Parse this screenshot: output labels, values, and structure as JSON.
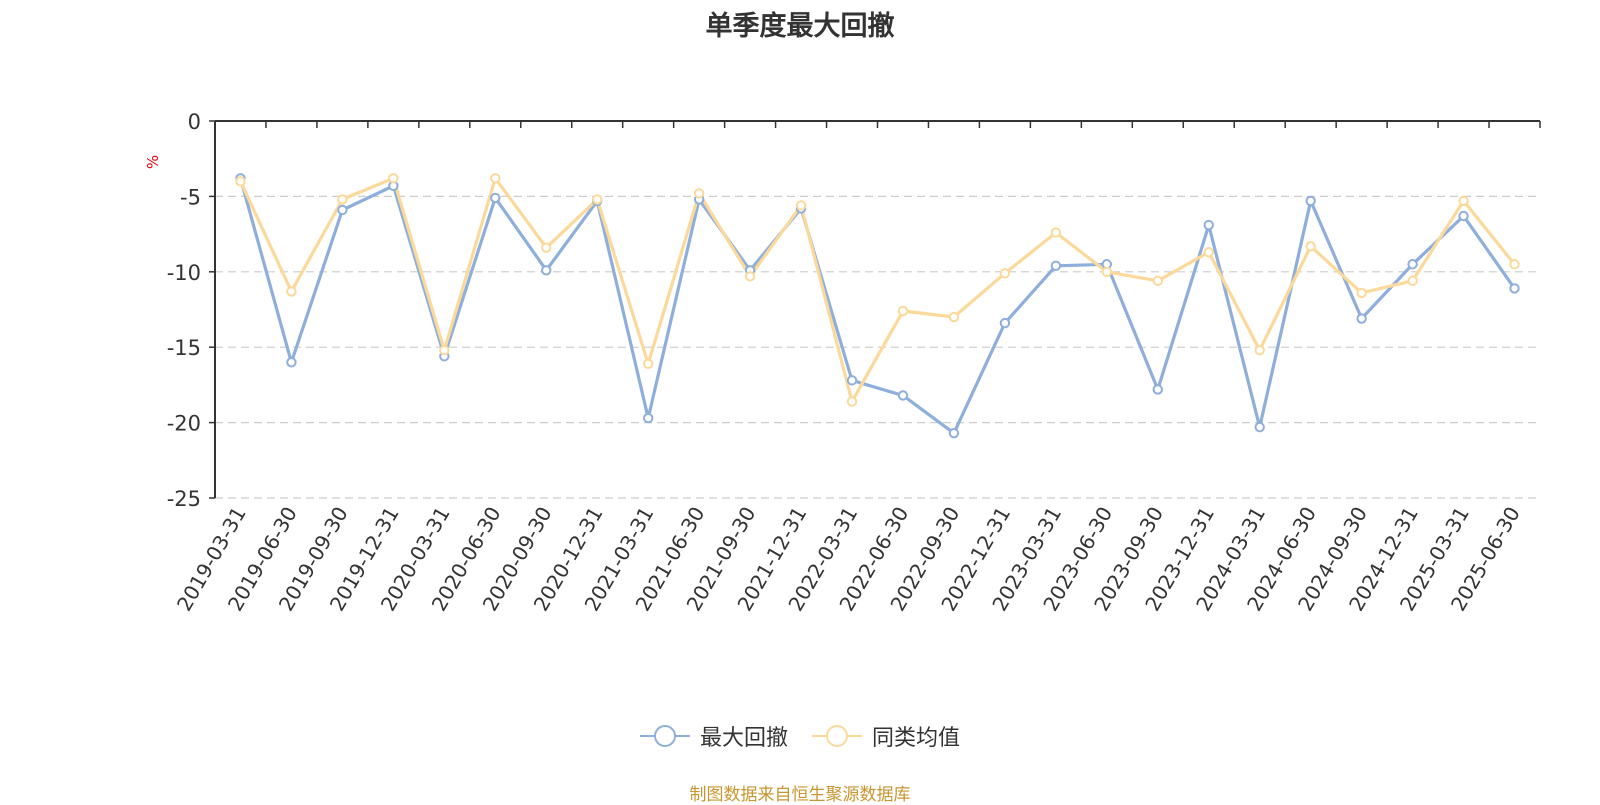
{
  "chart_data": {
    "type": "line",
    "title": "单季度最大回撤",
    "ylabel": "%",
    "ylim": [
      -25,
      0
    ],
    "yticks": [
      0,
      -5,
      -10,
      -15,
      -20,
      -25
    ],
    "grid": true,
    "legend_position": "bottom",
    "categories": [
      "2019-03-31",
      "2019-06-30",
      "2019-09-30",
      "2019-12-31",
      "2020-03-31",
      "2020-06-30",
      "2020-09-30",
      "2020-12-31",
      "2021-03-31",
      "2021-06-30",
      "2021-09-30",
      "2021-12-31",
      "2022-03-31",
      "2022-06-30",
      "2022-09-30",
      "2022-12-31",
      "2023-03-31",
      "2023-06-30",
      "2023-09-30",
      "2023-12-31",
      "2024-03-31",
      "2024-06-30",
      "2024-09-30",
      "2024-12-31",
      "2025-03-31",
      "2025-06-30"
    ],
    "series": [
      {
        "name": "最大回撤",
        "color": "#8eaedb",
        "values": [
          -3.8,
          -16.0,
          -5.9,
          -4.3,
          -15.6,
          -5.1,
          -9.9,
          -5.3,
          -19.7,
          -5.2,
          -9.9,
          -5.8,
          -17.2,
          -18.2,
          -20.7,
          -13.4,
          -9.6,
          -9.5,
          -17.8,
          -6.9,
          -20.3,
          -5.3,
          -13.1,
          -9.5,
          -6.3,
          -11.1
        ]
      },
      {
        "name": "同类均值",
        "color": "#fbd99a",
        "values": [
          -4.0,
          -11.3,
          -5.2,
          -3.8,
          -15.2,
          -3.8,
          -8.4,
          -5.2,
          -16.1,
          -4.8,
          -10.3,
          -5.6,
          -18.6,
          -12.6,
          -13.0,
          -10.1,
          -7.4,
          -10.0,
          -10.6,
          -8.7,
          -15.2,
          -8.3,
          -11.4,
          -10.6,
          -5.3,
          -9.5
        ]
      }
    ]
  },
  "source_text": "制图数据来自恒生聚源数据库",
  "colors": {
    "axis": "#333333",
    "grid": "#cccccc",
    "ylabel": "#e8000b",
    "source": "#c8962e"
  }
}
